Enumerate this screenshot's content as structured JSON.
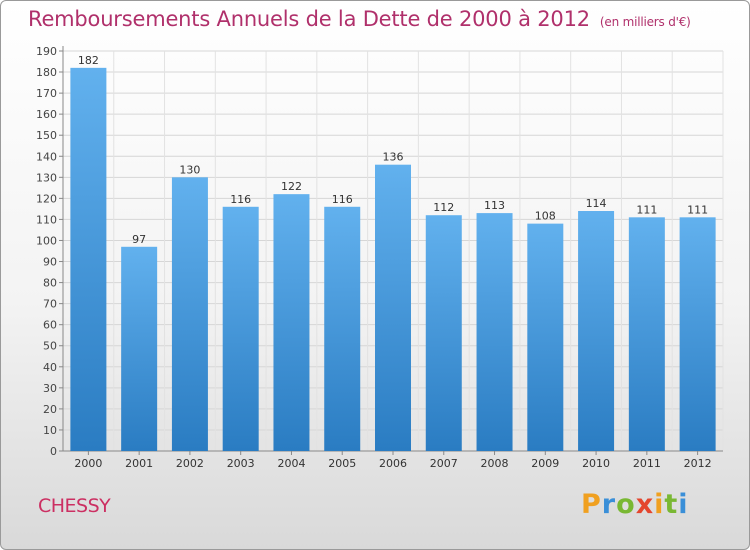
{
  "title": "Remboursements Annuels de la Dette de 2000 à 2012",
  "unit": "(en milliers d'€)",
  "city": "CHESSY",
  "logo": {
    "text": "Proxiti",
    "colors": [
      "#f0a020",
      "#3a8fd8",
      "#79b833",
      "#e4462e"
    ]
  },
  "colors": {
    "bar_light": "#62b1ee",
    "bar_dark": "#2a7cc2",
    "title": "#b0306b",
    "city": "#cc2f62"
  },
  "chart_data": {
    "type": "bar",
    "title": "Remboursements Annuels de la Dette de 2000 à 2012",
    "xlabel": "",
    "ylabel": "",
    "categories": [
      "2000",
      "2001",
      "2002",
      "2003",
      "2004",
      "2005",
      "2006",
      "2007",
      "2008",
      "2009",
      "2010",
      "2011",
      "2012"
    ],
    "values": [
      182,
      97,
      130,
      116,
      122,
      116,
      136,
      112,
      113,
      108,
      114,
      111,
      111
    ],
    "ylim": [
      0,
      190
    ],
    "ytick_step": 10,
    "grid": true,
    "data_labels": true
  }
}
